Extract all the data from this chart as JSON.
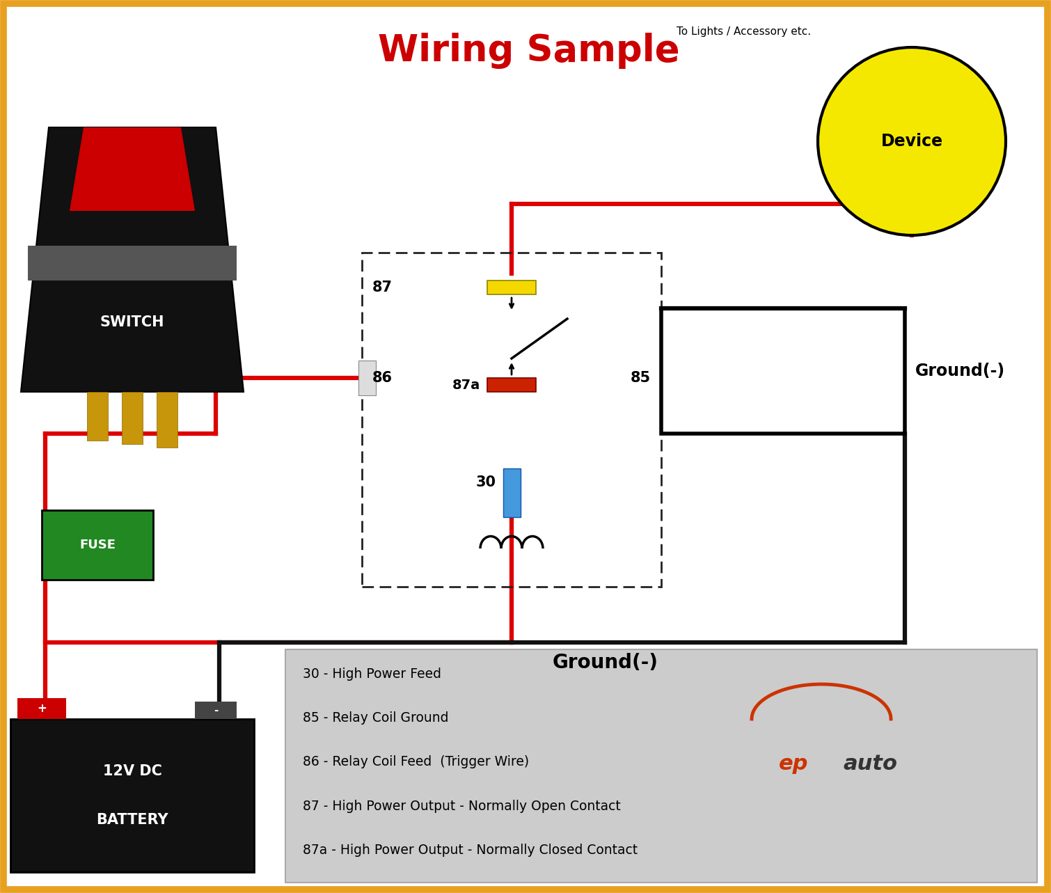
{
  "title": "Wiring Sample",
  "title_color": "#cc0000",
  "title_fontsize": 38,
  "bg_color": "#ffffff",
  "border_color": "#e8a020",
  "legend_items": [
    "30 - High Power Feed",
    "85 - Relay Coil Ground",
    "86 - Relay Coil Feed  (Trigger Wire)",
    "87 - High Power Output - Normally Open Contact",
    "87a - High Power Output - Normally Closed Contact"
  ],
  "ground_label_right": "Ground(-)",
  "ground_label_bottom": "Ground(-)",
  "device_label": "Device",
  "device_label2": "To Lights / Accessory etc.",
  "switch_label": "SWITCH",
  "battery_label1": "12V DC",
  "battery_label2": "BATTERY",
  "fuse_label": "FUSE",
  "wire_red": "#dd0000",
  "wire_black": "#111111",
  "relay_dash_color": "#222222",
  "yellow_color": "#f5d800",
  "blue_color": "#4499dd",
  "red_contact_color": "#cc2200",
  "switch_body_color": "#111111",
  "switch_red_color": "#cc0000",
  "battery_color": "#111111",
  "fuse_color": "#228822",
  "device_circle_color": "#f5e800",
  "legend_bg": "#cccccc",
  "epauto_red": "#cc3300",
  "epauto_dark": "#333333"
}
